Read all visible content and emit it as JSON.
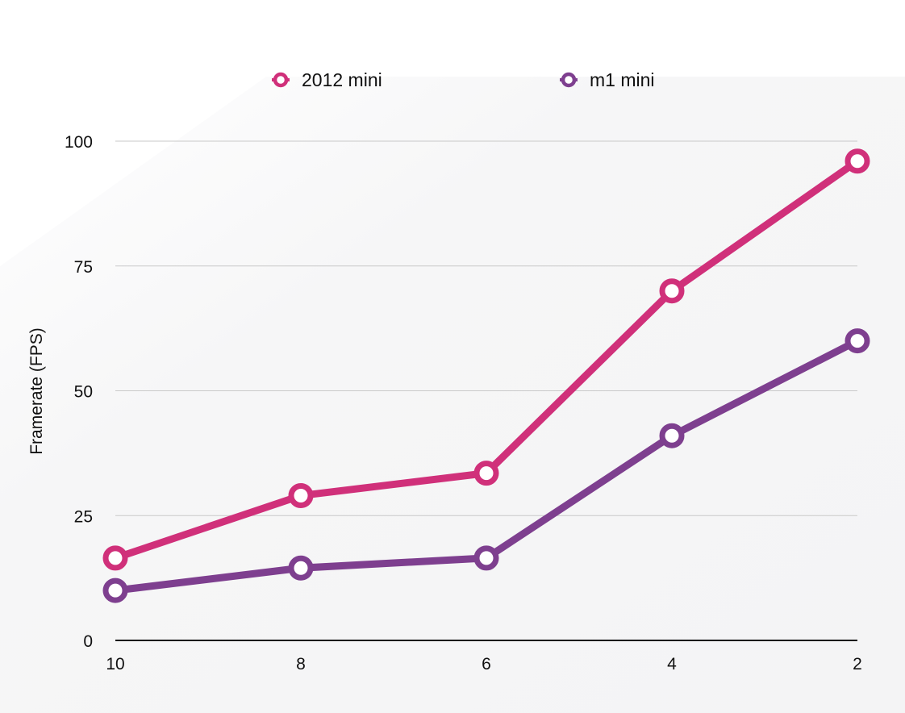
{
  "chart_data": {
    "type": "line",
    "title": "",
    "xlabel": "",
    "ylabel": "Framerate (FPS)",
    "categories": [
      "10",
      "8",
      "6",
      "4",
      "2"
    ],
    "ylim": [
      0,
      100
    ],
    "yticks": [
      0,
      25,
      50,
      75,
      100
    ],
    "grid": true,
    "legend_position": "top",
    "series": [
      {
        "name": "2012 mini",
        "color": "#d0307a",
        "values": [
          16.5,
          29,
          33.5,
          70,
          96
        ]
      },
      {
        "name": "m1 mini",
        "color": "#7e3f8f",
        "values": [
          10,
          14.5,
          16.5,
          41,
          60
        ]
      }
    ]
  }
}
